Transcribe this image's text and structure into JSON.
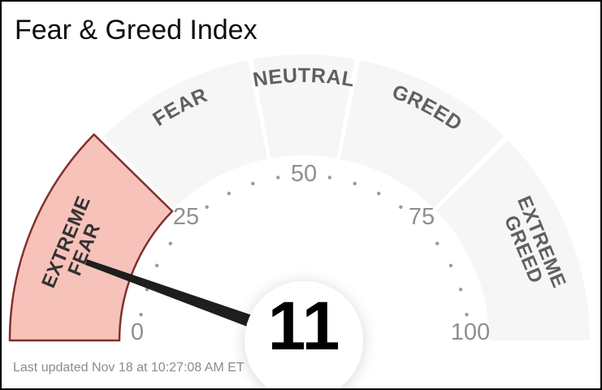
{
  "header": {
    "title": "Fear & Greed Index"
  },
  "footer": {
    "last_updated": "Last updated Nov 18 at 10:27:08 AM ET"
  },
  "chart_data": {
    "type": "gauge",
    "title": "Fear & Greed Index",
    "value": 11,
    "value_label": "11",
    "min": 0,
    "max": 100,
    "axis_numbers": [
      0,
      25,
      50,
      75,
      100
    ],
    "minor_tick_step": 5,
    "current_zone": "EXTREME FEAR",
    "segments": [
      {
        "label": "EXTREME FEAR",
        "lines": [
          "EXTREME",
          "FEAR"
        ],
        "from": 0,
        "to": 25,
        "active": true,
        "orientation": "radial"
      },
      {
        "label": "FEAR",
        "lines": [
          "FEAR"
        ],
        "from": 25,
        "to": 44,
        "active": false,
        "orientation": "arc"
      },
      {
        "label": "NEUTRAL",
        "lines": [
          "NEUTRAL"
        ],
        "from": 44,
        "to": 56,
        "active": false,
        "orientation": "arc"
      },
      {
        "label": "GREED",
        "lines": [
          "GREED"
        ],
        "from": 56,
        "to": 75,
        "active": false,
        "orientation": "arc"
      },
      {
        "label": "EXTREME GREED",
        "lines": [
          "EXTREME",
          "GREED"
        ],
        "from": 75,
        "to": 100,
        "active": false,
        "orientation": "radial"
      }
    ],
    "colors": {
      "active_fill": "#f7c2ba",
      "active_stroke": "#82302c",
      "inactive_fill": "#f6f6f6",
      "active_label": "#333333",
      "inactive_label": "#606064",
      "tick_dot": "#9a9a9a",
      "axis_number": "#8f8f92",
      "needle": "#1e1e1e",
      "hub_fill": "#ffffff",
      "value_text": "#000000"
    }
  }
}
